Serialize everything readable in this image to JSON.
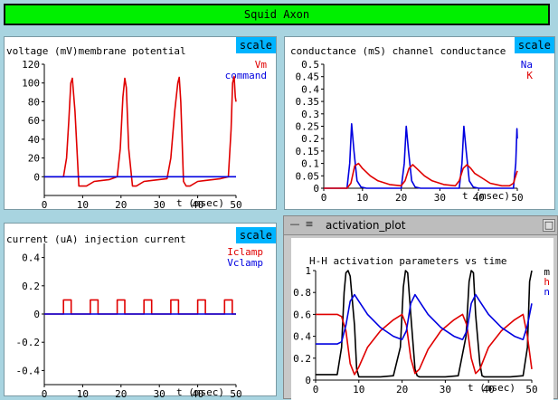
{
  "app": {
    "title": "Squid Axon"
  },
  "scale_label": "scale",
  "panels": {
    "voltage": {
      "title": "voltage (mV)membrane potential",
      "xlabel": "t (msec)",
      "legend": [
        {
          "name": "Vm",
          "color": "#e00000"
        },
        {
          "name": "command",
          "color": "#0000e0"
        }
      ]
    },
    "conductance": {
      "title": "conductance (mS) channel conductance",
      "xlabel": "t (msec)",
      "legend": [
        {
          "name": "Na",
          "color": "#0000e0"
        },
        {
          "name": "K",
          "color": "#e00000"
        }
      ]
    },
    "current": {
      "title": "current (uA) injection current",
      "xlabel": "t (msec)",
      "legend": [
        {
          "name": "Iclamp",
          "color": "#e00000"
        },
        {
          "name": "Vclamp",
          "color": "#0000e0"
        }
      ]
    }
  },
  "activation_window": {
    "title": "activation_plot",
    "plot_title": "H-H activation parameters vs time",
    "xlabel": "t (msec)",
    "legend": [
      {
        "name": "m",
        "color": "#000000"
      },
      {
        "name": "h",
        "color": "#e00000"
      },
      {
        "name": "n",
        "color": "#0000e0"
      }
    ]
  },
  "chart_data": [
    {
      "id": "voltage",
      "type": "line",
      "xlim": [
        0,
        50
      ],
      "ylim": [
        -20,
        120
      ],
      "xticks": [
        0,
        10,
        20,
        30,
        40,
        50
      ],
      "yticks": [
        0,
        20,
        40,
        60,
        80,
        100,
        120
      ],
      "series": [
        {
          "name": "Vm",
          "color": "#e00000",
          "x": [
            0,
            5,
            5.8,
            6.4,
            6.9,
            7.3,
            8,
            9,
            11,
            13,
            15,
            17,
            19,
            19.8,
            20.5,
            21,
            21.4,
            22,
            23,
            24,
            26,
            28,
            30,
            32,
            33,
            34,
            34.8,
            35.2,
            35.6,
            36.3,
            37,
            38,
            40,
            42,
            44,
            46,
            48,
            48.7,
            49.1,
            49.5,
            49.8,
            50
          ],
          "y": [
            0,
            0,
            20,
            60,
            100,
            105,
            70,
            -10,
            -10,
            -5,
            -4,
            -3,
            0,
            30,
            85,
            105,
            95,
            30,
            -10,
            -10,
            -5,
            -4,
            -3,
            -2,
            20,
            70,
            100,
            106,
            80,
            -5,
            -10,
            -10,
            -5,
            -4,
            -3,
            -2,
            0,
            50,
            100,
            107,
            85,
            80
          ]
        },
        {
          "name": "command",
          "color": "#0000e0",
          "x": [
            0,
            50
          ],
          "y": [
            0,
            0
          ]
        }
      ]
    },
    {
      "id": "conductance",
      "type": "line",
      "xlim": [
        0,
        50
      ],
      "ylim": [
        0,
        0.5
      ],
      "xticks": [
        0,
        10,
        20,
        30,
        40,
        50
      ],
      "yticks": [
        0,
        0.05,
        0.1,
        0.15,
        0.2,
        0.25,
        0.3,
        0.35,
        0.4,
        0.45,
        0.5
      ],
      "series": [
        {
          "name": "Na",
          "color": "#0000e0",
          "x": [
            0,
            6,
            6.7,
            7.2,
            7.8,
            8.6,
            9.6,
            11,
            20,
            20.8,
            21.3,
            21.9,
            22.7,
            23.6,
            25,
            35,
            35.7,
            36.2,
            36.8,
            37.6,
            38.6,
            40,
            49,
            49.6,
            49.9,
            50
          ],
          "y": [
            0,
            0,
            0.1,
            0.26,
            0.15,
            0.03,
            0.005,
            0,
            0,
            0.1,
            0.25,
            0.15,
            0.03,
            0.005,
            0,
            0,
            0.1,
            0.25,
            0.15,
            0.03,
            0.005,
            0,
            0,
            0.1,
            0.24,
            0.2
          ]
        },
        {
          "name": "K",
          "color": "#e00000",
          "x": [
            0,
            6,
            7,
            8,
            9,
            10,
            12,
            14,
            17,
            20,
            21,
            22,
            23,
            24,
            26,
            28,
            31,
            34,
            35,
            36,
            37,
            38,
            39,
            41,
            43,
            46,
            48,
            49,
            49.6,
            50
          ],
          "y": [
            0,
            0,
            0.02,
            0.09,
            0.1,
            0.08,
            0.05,
            0.03,
            0.015,
            0.01,
            0.03,
            0.08,
            0.095,
            0.08,
            0.05,
            0.03,
            0.015,
            0.01,
            0.03,
            0.08,
            0.095,
            0.08,
            0.06,
            0.04,
            0.02,
            0.01,
            0.01,
            0.02,
            0.05,
            0.07
          ]
        }
      ]
    },
    {
      "id": "current",
      "type": "line",
      "xlim": [
        0,
        50
      ],
      "ylim": [
        -0.5,
        0.5
      ],
      "xticks": [
        0,
        10,
        20,
        30,
        40,
        50
      ],
      "yticks": [
        -0.4,
        -0.2,
        0,
        0.2,
        0.4
      ],
      "series": [
        {
          "name": "Iclamp",
          "color": "#e00000",
          "x": [
            0,
            5,
            5,
            7,
            7,
            12,
            12,
            14,
            14,
            19,
            19,
            21,
            21,
            26,
            26,
            28,
            28,
            33,
            33,
            35,
            35,
            40,
            40,
            42,
            42,
            47,
            47,
            49,
            49,
            50
          ],
          "y": [
            0,
            0,
            0.1,
            0.1,
            0,
            0,
            0.1,
            0.1,
            0,
            0,
            0.1,
            0.1,
            0,
            0,
            0.1,
            0.1,
            0,
            0,
            0.1,
            0.1,
            0,
            0,
            0.1,
            0.1,
            0,
            0,
            0.1,
            0.1,
            0,
            0
          ]
        },
        {
          "name": "Vclamp",
          "color": "#0000e0",
          "x": [
            0,
            50
          ],
          "y": [
            0,
            0
          ]
        }
      ]
    },
    {
      "id": "activation",
      "type": "line",
      "xlim": [
        0,
        50
      ],
      "ylim": [
        0,
        1
      ],
      "xticks": [
        0,
        10,
        20,
        30,
        40,
        50
      ],
      "yticks": [
        0,
        0.2,
        0.4,
        0.6,
        0.8,
        1
      ],
      "series": [
        {
          "name": "m",
          "color": "#000000",
          "x": [
            0,
            5,
            6,
            6.6,
            7,
            7.5,
            8,
            9,
            9.5,
            10,
            12,
            15,
            18,
            19.6,
            20.3,
            20.8,
            21.3,
            22,
            23,
            23.5,
            24,
            27,
            30,
            33,
            34.8,
            35.5,
            36,
            36.5,
            37,
            38,
            38.5,
            39,
            42,
            45,
            48,
            49,
            49.5,
            50
          ],
          "y": [
            0.05,
            0.05,
            0.3,
            0.8,
            0.98,
            1,
            0.95,
            0.5,
            0.1,
            0.03,
            0.03,
            0.03,
            0.04,
            0.3,
            0.85,
            1,
            0.98,
            0.6,
            0.1,
            0.04,
            0.03,
            0.03,
            0.03,
            0.04,
            0.4,
            0.9,
            1,
            0.98,
            0.6,
            0.15,
            0.04,
            0.03,
            0.03,
            0.03,
            0.04,
            0.3,
            0.9,
            1
          ]
        },
        {
          "name": "h",
          "color": "#e00000",
          "x": [
            0,
            5,
            6,
            7,
            8,
            9,
            10,
            12,
            15,
            18,
            20,
            21,
            22,
            23,
            24,
            26,
            29,
            32,
            34,
            35,
            36,
            37,
            38,
            40,
            43,
            46,
            48,
            49,
            50
          ],
          "y": [
            0.6,
            0.6,
            0.58,
            0.45,
            0.15,
            0.05,
            0.12,
            0.3,
            0.45,
            0.55,
            0.6,
            0.5,
            0.2,
            0.06,
            0.1,
            0.28,
            0.45,
            0.55,
            0.6,
            0.5,
            0.2,
            0.06,
            0.1,
            0.3,
            0.45,
            0.55,
            0.6,
            0.4,
            0.1
          ]
        },
        {
          "name": "n",
          "color": "#0000e0",
          "x": [
            0,
            5,
            6,
            7,
            8,
            9,
            10,
            12,
            15,
            18,
            20,
            21,
            22,
            23,
            24,
            26,
            29,
            32,
            34,
            35,
            36,
            37,
            38,
            40,
            43,
            46,
            48,
            49,
            50
          ],
          "y": [
            0.33,
            0.33,
            0.35,
            0.5,
            0.72,
            0.78,
            0.72,
            0.6,
            0.48,
            0.4,
            0.37,
            0.45,
            0.7,
            0.78,
            0.72,
            0.6,
            0.48,
            0.4,
            0.37,
            0.45,
            0.7,
            0.78,
            0.72,
            0.6,
            0.48,
            0.4,
            0.37,
            0.5,
            0.7
          ]
        }
      ]
    }
  ]
}
